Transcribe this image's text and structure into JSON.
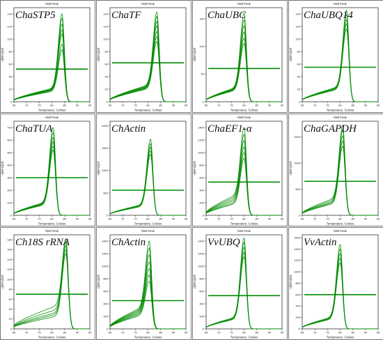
{
  "figure": {
    "panels": [
      {
        "gene": "ChaSTP5",
        "title": "Melt Peak",
        "ylabel": "-d(RFU)/dT",
        "xlabel": "Temperature, Celsius",
        "yticks": [
          0,
          20,
          40,
          60,
          80,
          100,
          120,
          140
        ],
        "xticks": [
          65,
          70,
          75,
          80,
          85,
          90,
          95
        ]
      },
      {
        "gene": "ChaTF",
        "title": "Melt Peak",
        "ylabel": "-d(RFU)/dT",
        "xlabel": "Temperature, Celsius",
        "yticks": [
          0,
          20,
          40,
          60,
          80,
          100,
          120,
          140
        ],
        "xticks": [
          65,
          70,
          75,
          80,
          85,
          90,
          95
        ]
      },
      {
        "gene": "ChaUBC",
        "title": "Melt Peak",
        "ylabel": "-d(RFU)/dT",
        "xlabel": "Temperature, Celsius",
        "yticks": [
          0,
          50,
          100,
          150
        ],
        "xticks": [
          65,
          70,
          75,
          80,
          85,
          90,
          95
        ]
      },
      {
        "gene": "ChaUBQ14",
        "title": "Melt Peak",
        "ylabel": "-d(RFU)/dT",
        "xlabel": "Temperature, Celsius",
        "yticks": [
          0,
          20,
          40,
          60,
          80,
          100,
          120,
          140
        ],
        "xticks": [
          65,
          70,
          75,
          80,
          85,
          90,
          95
        ]
      },
      {
        "gene": "ChaTUA",
        "title": "Melt Peak",
        "ylabel": "-d(RFU)/dT",
        "xlabel": "Temperature, Celsius",
        "yticks": [
          0,
          100,
          200,
          300,
          400,
          500,
          600,
          700
        ],
        "xticks": [
          65,
          70,
          75,
          80,
          85,
          90,
          95
        ]
      },
      {
        "gene": "ChActin",
        "title": "",
        "ylabel": "-d(RFU)/dT",
        "xlabel": "Temperature, Celsius",
        "yticks": [
          0,
          500,
          1000,
          1500,
          2000
        ],
        "xticks": [
          65,
          70,
          75,
          80,
          85,
          90,
          95
        ]
      },
      {
        "gene": "ChaEF1-α",
        "title": "Melt Peak",
        "ylabel": "-d(RFU)/dT",
        "xlabel": "Temperature, Celsius",
        "yticks": [
          0,
          200,
          400,
          600,
          800,
          1000,
          1200,
          1400
        ],
        "xticks": [
          65,
          70,
          75,
          80,
          85,
          90,
          95
        ]
      },
      {
        "gene": "ChaGAPDH",
        "title": "Melt Peak",
        "ylabel": "-d(RFU)/dT",
        "xlabel": "Temperature, Celsius",
        "yticks": [
          0,
          500,
          1000,
          1500
        ],
        "xticks": [
          65,
          70,
          75,
          80,
          85,
          90,
          95
        ]
      },
      {
        "gene": "Ch18S rRNA",
        "title": "Melt Peak",
        "ylabel": "-d(RFU)/dT",
        "xlabel": "Temperature, Celsius",
        "yticks": [
          0,
          20,
          40,
          60,
          80,
          100,
          120,
          140,
          160,
          180
        ],
        "xticks": [
          65,
          70,
          75,
          80,
          85,
          90,
          95
        ]
      },
      {
        "gene": "ChActin",
        "title": "Melt Peak",
        "ylabel": "-d(RFU)/dT",
        "xlabel": "Temperature, Celsius",
        "yticks": [
          0,
          200,
          400,
          600,
          800,
          1000,
          1200,
          1400
        ],
        "xticks": [
          65,
          70,
          75,
          80,
          85,
          90,
          95
        ]
      },
      {
        "gene": "VvUBQ",
        "title": "Melt Peak",
        "ylabel": "-d(RFU)/dT",
        "xlabel": "Temperature, Celsius",
        "yticks": [
          0,
          200,
          400,
          600,
          800,
          1000,
          1200,
          1400
        ],
        "xticks": [
          65,
          70,
          75,
          80,
          85,
          90,
          95
        ]
      },
      {
        "gene": "VvActin",
        "title": "Melt Peak",
        "ylabel": "-d(RFU)/dT",
        "xlabel": "Temperature, Celsius",
        "yticks": [
          0,
          200,
          400,
          600,
          800,
          1000,
          1200,
          1400,
          1600
        ],
        "xticks": [
          65,
          70,
          75,
          80,
          85,
          90,
          95
        ]
      }
    ]
  },
  "chart_data": [
    {
      "type": "line",
      "title": "Melt Peak",
      "annotation": "ChaSTP5",
      "xlabel": "Temperature, Celsius",
      "ylabel": "-d(RFU)/dT",
      "xlim": [
        65,
        95
      ],
      "ylim": [
        0,
        150
      ],
      "threshold": 52,
      "line_color": "#008a00",
      "series": [
        {
          "peak_x": 84.0,
          "peak_y": 140,
          "shoulder_y": 22
        },
        {
          "peak_x": 84.0,
          "peak_y": 133,
          "shoulder_y": 21
        },
        {
          "peak_x": 84.0,
          "peak_y": 124,
          "shoulder_y": 20
        },
        {
          "peak_x": 84.0,
          "peak_y": 115,
          "shoulder_y": 19
        },
        {
          "peak_x": 84.0,
          "peak_y": 108,
          "shoulder_y": 20
        },
        {
          "peak_x": 84.0,
          "peak_y": 92,
          "shoulder_y": 18
        },
        {
          "peak_x": 84.0,
          "peak_y": 83,
          "shoulder_y": 17
        }
      ]
    },
    {
      "type": "line",
      "title": "Melt Peak",
      "annotation": "ChaTF",
      "xlabel": "Temperature, Celsius",
      "ylabel": "-d(RFU)/dT",
      "xlim": [
        65,
        95
      ],
      "ylim": [
        0,
        150
      ],
      "threshold": 62,
      "line_color": "#008a00",
      "series": [
        {
          "peak_x": 83.5,
          "peak_y": 143,
          "shoulder_y": 27
        },
        {
          "peak_x": 83.5,
          "peak_y": 136,
          "shoulder_y": 26
        },
        {
          "peak_x": 83.5,
          "peak_y": 128,
          "shoulder_y": 25
        },
        {
          "peak_x": 83.5,
          "peak_y": 121,
          "shoulder_y": 24
        },
        {
          "peak_x": 83.5,
          "peak_y": 112,
          "shoulder_y": 23
        },
        {
          "peak_x": 83.5,
          "peak_y": 104,
          "shoulder_y": 22
        },
        {
          "peak_x": 83.5,
          "peak_y": 96,
          "shoulder_y": 21
        }
      ]
    },
    {
      "type": "line",
      "title": "Melt Peak",
      "annotation": "ChaUBC",
      "xlabel": "Temperature, Celsius",
      "ylabel": "-d(RFU)/dT",
      "xlim": [
        65,
        95
      ],
      "ylim": [
        0,
        170
      ],
      "threshold": 60,
      "line_color": "#008a00",
      "series": [
        {
          "peak_x": 80.0,
          "peak_y": 160,
          "shoulder_y": 26
        },
        {
          "peak_x": 80.0,
          "peak_y": 148,
          "shoulder_y": 25
        },
        {
          "peak_x": 80.0,
          "peak_y": 137,
          "shoulder_y": 24
        },
        {
          "peak_x": 80.0,
          "peak_y": 126,
          "shoulder_y": 23
        },
        {
          "peak_x": 80.0,
          "peak_y": 115,
          "shoulder_y": 22
        },
        {
          "peak_x": 80.0,
          "peak_y": 105,
          "shoulder_y": 21
        }
      ]
    },
    {
      "type": "line",
      "title": "Melt Peak",
      "annotation": "ChaUBQ14",
      "xlabel": "Temperature, Celsius",
      "ylabel": "-d(RFU)/dT",
      "xlim": [
        65,
        95
      ],
      "ylim": [
        0,
        150
      ],
      "threshold": 55,
      "line_color": "#008a00",
      "series": [
        {
          "peak_x": 82.5,
          "peak_y": 146,
          "shoulder_y": 24
        },
        {
          "peak_x": 82.5,
          "peak_y": 139,
          "shoulder_y": 23
        },
        {
          "peak_x": 82.5,
          "peak_y": 131,
          "shoulder_y": 22
        },
        {
          "peak_x": 82.5,
          "peak_y": 124,
          "shoulder_y": 21
        },
        {
          "peak_x": 82.5,
          "peak_y": 116,
          "shoulder_y": 20
        }
      ]
    },
    {
      "type": "line",
      "title": "Melt Peak",
      "annotation": "ChaTUA",
      "xlabel": "Temperature, Celsius",
      "ylabel": "-d(RFU)/dT",
      "xlim": [
        65,
        95
      ],
      "ylim": [
        0,
        750
      ],
      "threshold": 300,
      "line_color": "#008a00",
      "series": [
        {
          "peak_x": 80.5,
          "peak_y": 700,
          "shoulder_y": 105
        },
        {
          "peak_x": 80.5,
          "peak_y": 660,
          "shoulder_y": 100
        },
        {
          "peak_x": 80.5,
          "peak_y": 620,
          "shoulder_y": 95
        },
        {
          "peak_x": 80.5,
          "peak_y": 585,
          "shoulder_y": 92
        },
        {
          "peak_x": 80.5,
          "peak_y": 550,
          "shoulder_y": 88
        },
        {
          "peak_x": 80.5,
          "peak_y": 520,
          "shoulder_y": 85
        }
      ]
    },
    {
      "type": "line",
      "title": "",
      "annotation": "ChActin",
      "xlabel": "Temperature, Celsius",
      "ylabel": "-d(RFU)/dT",
      "xlim": [
        65,
        95
      ],
      "ylim": [
        0,
        2100
      ],
      "threshold": 560,
      "line_color": "#008a00",
      "series": [
        {
          "peak_x": 81.0,
          "peak_y": 1700,
          "shoulder_y": 240
        },
        {
          "peak_x": 81.0,
          "peak_y": 1600,
          "shoulder_y": 230
        },
        {
          "peak_x": 81.0,
          "peak_y": 1520,
          "shoulder_y": 220
        },
        {
          "peak_x": 81.0,
          "peak_y": 1440,
          "shoulder_y": 210
        },
        {
          "peak_x": 81.0,
          "peak_y": 1360,
          "shoulder_y": 200
        }
      ]
    },
    {
      "type": "line",
      "title": "Melt Peak",
      "annotation": "ChaEF1-α",
      "xlabel": "Temperature, Celsius",
      "ylabel": "-d(RFU)/dT",
      "xlim": [
        65,
        95
      ],
      "ylim": [
        0,
        1500
      ],
      "threshold": 530,
      "line_color": "#008a00",
      "series": [
        {
          "peak_x": 80.0,
          "peak_y": 1400,
          "shoulder_y": 330
        },
        {
          "peak_x": 80.0,
          "peak_y": 1290,
          "shoulder_y": 300
        },
        {
          "peak_x": 80.0,
          "peak_y": 1190,
          "shoulder_y": 270
        },
        {
          "peak_x": 80.0,
          "peak_y": 1090,
          "shoulder_y": 240
        },
        {
          "peak_x": 80.0,
          "peak_y": 1000,
          "shoulder_y": 210
        },
        {
          "peak_x": 80.0,
          "peak_y": 910,
          "shoulder_y": 190
        }
      ]
    },
    {
      "type": "line",
      "title": "Melt Peak",
      "annotation": "ChaGAPDH",
      "xlabel": "Temperature, Celsius",
      "ylabel": "-d(RFU)/dT",
      "xlim": [
        65,
        95
      ],
      "ylim": [
        0,
        1800
      ],
      "threshold": 650,
      "line_color": "#008a00",
      "series": [
        {
          "peak_x": 81.0,
          "peak_y": 1720,
          "shoulder_y": 330
        },
        {
          "peak_x": 81.0,
          "peak_y": 1620,
          "shoulder_y": 300
        },
        {
          "peak_x": 81.0,
          "peak_y": 1520,
          "shoulder_y": 270
        },
        {
          "peak_x": 81.0,
          "peak_y": 1420,
          "shoulder_y": 250
        },
        {
          "peak_x": 81.0,
          "peak_y": 1320,
          "shoulder_y": 230
        }
      ]
    },
    {
      "type": "line",
      "title": "Melt Peak",
      "annotation": "Ch18S rRNA",
      "xlabel": "Temperature, Celsius",
      "ylabel": "-d(RFU)/dT",
      "xlim": [
        65,
        95
      ],
      "ylim": [
        0,
        190
      ],
      "threshold": 70,
      "line_color": "#008a00",
      "series": [
        {
          "peak_x": 85.5,
          "peak_y": 182,
          "shoulder_y": 48
        },
        {
          "peak_x": 85.5,
          "peak_y": 175,
          "shoulder_y": 40
        },
        {
          "peak_x": 85.5,
          "peak_y": 168,
          "shoulder_y": 34
        },
        {
          "peak_x": 85.5,
          "peak_y": 160,
          "shoulder_y": 30
        },
        {
          "peak_x": 85.5,
          "peak_y": 152,
          "shoulder_y": 26
        }
      ]
    },
    {
      "type": "line",
      "title": "Melt Peak",
      "annotation": "ChActin",
      "xlabel": "Temperature, Celsius",
      "ylabel": "-d(RFU)/dT",
      "xlim": [
        65,
        95
      ],
      "ylim": [
        0,
        1500
      ],
      "threshold": 450,
      "line_color": "#008a00",
      "series": [
        {
          "peak_x": 80.5,
          "peak_y": 1400,
          "shoulder_y": 340
        },
        {
          "peak_x": 80.5,
          "peak_y": 1290,
          "shoulder_y": 320
        },
        {
          "peak_x": 80.5,
          "peak_y": 1180,
          "shoulder_y": 300
        },
        {
          "peak_x": 80.5,
          "peak_y": 1070,
          "shoulder_y": 280
        },
        {
          "peak_x": 80.5,
          "peak_y": 960,
          "shoulder_y": 260
        },
        {
          "peak_x": 80.5,
          "peak_y": 860,
          "shoulder_y": 240
        },
        {
          "peak_x": 80.5,
          "peak_y": 760,
          "shoulder_y": 220
        }
      ]
    },
    {
      "type": "line",
      "title": "Melt Peak",
      "annotation": "VvUBQ",
      "xlabel": "Temperature, Celsius",
      "ylabel": "-d(RFU)/dT",
      "xlim": [
        65,
        95
      ],
      "ylim": [
        0,
        1500
      ],
      "threshold": 530,
      "line_color": "#008a00",
      "series": [
        {
          "peak_x": 80.0,
          "peak_y": 1450,
          "shoulder_y": 190
        },
        {
          "peak_x": 80.0,
          "peak_y": 1380,
          "shoulder_y": 180
        },
        {
          "peak_x": 80.0,
          "peak_y": 1300,
          "shoulder_y": 170
        },
        {
          "peak_x": 80.0,
          "peak_y": 1220,
          "shoulder_y": 165
        },
        {
          "peak_x": 80.0,
          "peak_y": 1150,
          "shoulder_y": 160
        }
      ]
    },
    {
      "type": "line",
      "title": "Melt Peak",
      "annotation": "VvActin",
      "xlabel": "Temperature, Celsius",
      "ylabel": "-d(RFU)/dT",
      "xlim": [
        65,
        95
      ],
      "ylim": [
        0,
        1650
      ],
      "threshold": 600,
      "line_color": "#008a00",
      "series": [
        {
          "peak_x": 80.0,
          "peak_y": 1480,
          "shoulder_y": 210
        },
        {
          "peak_x": 80.0,
          "peak_y": 1400,
          "shoulder_y": 200
        },
        {
          "peak_x": 80.0,
          "peak_y": 1320,
          "shoulder_y": 190
        },
        {
          "peak_x": 80.0,
          "peak_y": 1240,
          "shoulder_y": 180
        },
        {
          "peak_x": 80.0,
          "peak_y": 1160,
          "shoulder_y": 175
        }
      ]
    }
  ]
}
